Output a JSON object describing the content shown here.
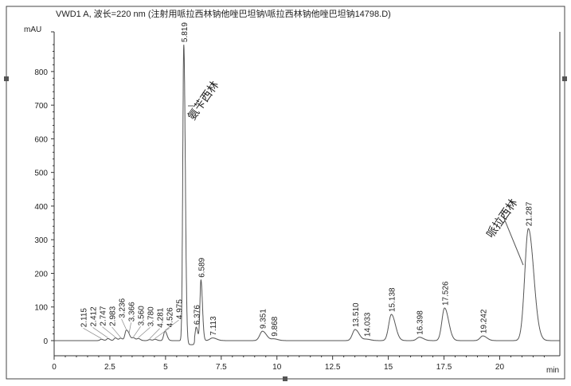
{
  "chart_data": {
    "type": "line",
    "title": "VWD1 A, 波长=220 nm (注射用哌拉西林钠他唑巴坦钠\\哌拉西林钠他唑巴坦钠14798.D)",
    "xlabel": "min",
    "ylabel": "mAU",
    "xlim": [
      0,
      22.7
    ],
    "ylim": [
      -45,
      918
    ],
    "grid": false,
    "line_color": "#555555",
    "x_ticks": [
      0,
      2.5,
      5,
      7.5,
      10,
      12.5,
      15,
      17.5,
      20
    ],
    "x_tick_labels": [
      "0",
      "2.5",
      "5",
      "7.5",
      "10",
      "12.5",
      "15",
      "17.5",
      "20"
    ],
    "y_ticks": [
      0,
      100,
      200,
      300,
      400,
      500,
      600,
      700,
      800
    ],
    "y_tick_labels": [
      "0",
      "100",
      "200",
      "300",
      "400",
      "500",
      "600",
      "700",
      "800"
    ],
    "peaks": [
      {
        "rt": 2.115,
        "label": "2.115",
        "height": 4
      },
      {
        "rt": 2.412,
        "label": "2.412",
        "height": 6
      },
      {
        "rt": 2.747,
        "label": "2.747",
        "height": 8
      },
      {
        "rt": 2.983,
        "label": "2.983",
        "height": 7
      },
      {
        "rt": 3.236,
        "label": "3.236",
        "height": 30
      },
      {
        "rt": 3.366,
        "label": "3.366",
        "height": 10
      },
      {
        "rt": 3.56,
        "label": "3.560",
        "height": 8
      },
      {
        "rt": 3.78,
        "label": "3.780",
        "height": 6
      },
      {
        "rt": 4.281,
        "label": "4.281",
        "height": 3
      },
      {
        "rt": 4.526,
        "label": "4.526",
        "height": 4
      },
      {
        "rt": 4.975,
        "label": "4.975",
        "height": 28
      },
      {
        "rt": 5.819,
        "label": "5.819",
        "height": 880
      },
      {
        "rt": 6.376,
        "label": "6.376",
        "height": 40
      },
      {
        "rt": 6.589,
        "label": "6.589",
        "height": 180
      },
      {
        "rt": 7.113,
        "label": "7.113",
        "height": 8
      },
      {
        "rt": 9.351,
        "label": "9.351",
        "height": 28
      },
      {
        "rt": 9.868,
        "label": "9.868",
        "height": 5
      },
      {
        "rt": 13.51,
        "label": "13.510",
        "height": 33
      },
      {
        "rt": 14.033,
        "label": "14.033",
        "height": 4
      },
      {
        "rt": 15.138,
        "label": "15.138",
        "height": 78
      },
      {
        "rt": 16.398,
        "label": "16.398",
        "height": 10
      },
      {
        "rt": 17.526,
        "label": "17.526",
        "height": 97
      },
      {
        "rt": 19.242,
        "label": "19.242",
        "height": 14
      },
      {
        "rt": 21.287,
        "label": "21.287",
        "height": 333
      }
    ],
    "annotations": [
      {
        "text": "氨苄西林",
        "peak": "5.819"
      },
      {
        "text": "哌拉西林",
        "peak": "21.287"
      }
    ]
  }
}
